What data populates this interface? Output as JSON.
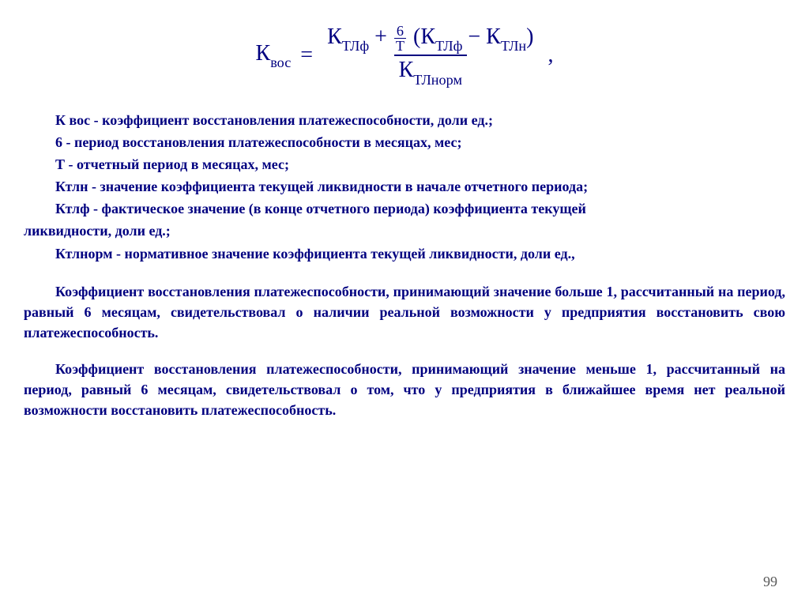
{
  "formula": {
    "lhs_base": "К",
    "lhs_sub": "вос",
    "eq": "=",
    "num_t1_base": "К",
    "num_t1_sub": "ТЛф",
    "plus": "+",
    "small_num": "6",
    "small_den": "T",
    "lparen": "(",
    "num_t2_base": "К",
    "num_t2_sub": "ТЛф",
    "minus": "−",
    "num_t3_base": "К",
    "num_t3_sub": "ТЛн",
    "rparen": ")",
    "den_base": "К",
    "den_sub": "ТЛнорм",
    "comma": ","
  },
  "defs": {
    "l1": "К вос - коэффициент восстановления платежеспособности, доли ед.;",
    "l2": "6 - период восстановления платежеспособности в месяцах, мес;",
    "l3": "Т - отчетный период в месяцах, мес;",
    "l4": "Ктлн  -  значение коэффициента текущей ликвидности в начале отчетного периода;",
    "l5a": "Ктлф - фактическое значение (в  конце отчетного периода) коэффициента текущей",
    "l5b": "ликвидности, доли ед.;",
    "l6": "Ктлнорм - нормативное значение коэффициента текущей ликвидности, доли ед.,"
  },
  "interp": {
    "p1": "Коэффициент восстановления платежеспособности, принимающий значение больше 1, рассчитанный на период, равный 6 месяцам, свидетельствовал о наличии реальной возможности у предприятия восстановить свою платежеспособность.",
    "p2": "Коэффициент восстановления платежеспособности, принимающий значение меньше 1, рассчитанный на период, равный 6 месяцам, свидетельствовал о том, что у предприятия в ближайшее время нет реальной возможности восстановить платежеспособность."
  },
  "page_number": "99",
  "colors": {
    "text": "#000080",
    "pagenum": "#595959",
    "background": "#ffffff"
  },
  "typography": {
    "body_fontsize_pt": 14,
    "formula_fontsize_pt": 21,
    "font_family": "Times New Roman",
    "font_weight": "bold"
  }
}
